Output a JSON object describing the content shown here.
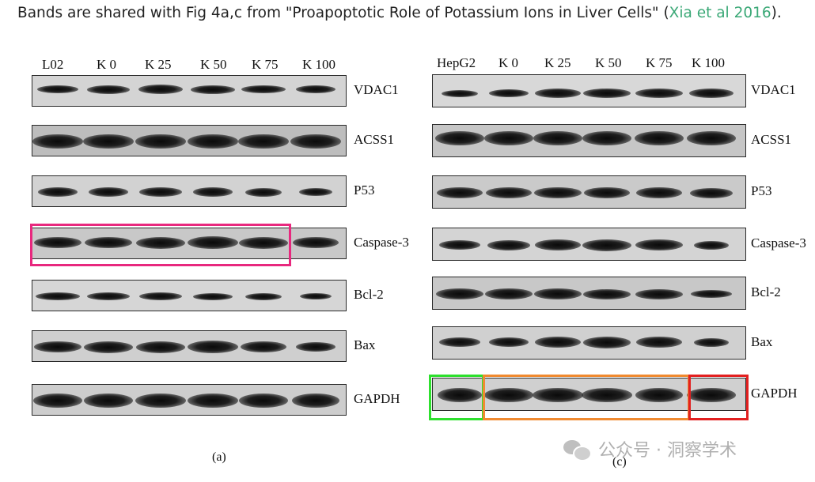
{
  "caption": {
    "prefix": "Bands are shared with Fig 4a,c from \"Proapoptotic Role of Potassium Ions in Liver Cells\" (",
    "link": "Xia et al 2016",
    "suffix": ")."
  },
  "panel_a": {
    "lanes": [
      "L02",
      "K 0",
      "K 25",
      "K 50",
      "K 75",
      "K 100"
    ],
    "proteins": [
      "VDAC1",
      "ACSS1",
      "P53",
      "Caspase-3",
      "Bcl-2",
      "Bax",
      "GAPDH"
    ],
    "caption": "(a)"
  },
  "panel_c": {
    "lanes": [
      "HepG2",
      "K 0",
      "K 25",
      "K 50",
      "K 75",
      "K 100"
    ],
    "proteins": [
      "VDAC1",
      "ACSS1",
      "P53",
      "Caspase-3",
      "Bcl-2",
      "Bax",
      "GAPDH"
    ],
    "caption": "(c)"
  },
  "highlights": {
    "panel_a_caspase3": "#e8287e",
    "panel_c_gapdh_lane1": "#2ee02e",
    "panel_c_gapdh_lanes2_5": "#f08a30",
    "panel_c_gapdh_lane6": "#e22020"
  },
  "watermark": "公众号 · 洞察学术"
}
